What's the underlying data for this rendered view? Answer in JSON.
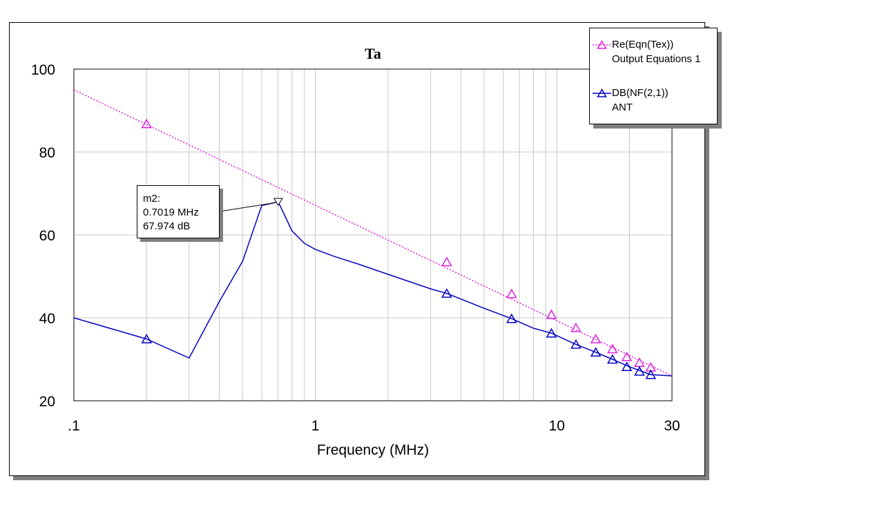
{
  "chart_data": {
    "type": "line",
    "title": "Ta",
    "xlabel": "Frequency (MHz)",
    "ylabel": "",
    "x_scale": "log",
    "xlim": [
      0.1,
      30
    ],
    "ylim": [
      20,
      100
    ],
    "x_tick_labels": [
      ".1",
      "1",
      "10",
      "30"
    ],
    "x_ticks": [
      0.1,
      1,
      10,
      30
    ],
    "y_ticks": [
      20,
      40,
      60,
      80,
      100
    ],
    "y_tick_labels": [
      "20",
      "40",
      "60",
      "80",
      "100"
    ],
    "grid": true,
    "legend_position": "top-right",
    "series": [
      {
        "name": "Re(Eqn(Tex))",
        "source": "Output Equations 1",
        "color": "#e020e0",
        "line_style": "dotted",
        "marker": "triangle",
        "x": [
          0.1,
          30
        ],
        "y": [
          95,
          26
        ],
        "marker_points": [
          [
            0.2,
            86.8
          ],
          [
            3.5,
            53.5
          ],
          [
            6.5,
            45.8
          ],
          [
            9.5,
            40.8
          ],
          [
            12,
            37.6
          ],
          [
            14.5,
            34.9
          ],
          [
            17,
            32.5
          ],
          [
            19.5,
            30.6
          ],
          [
            22,
            29.2
          ],
          [
            24.5,
            28.1
          ]
        ]
      },
      {
        "name": "DB(NF(2,1))",
        "source": "ANT",
        "color": "#0000c0",
        "line_style": "solid",
        "marker": "triangle",
        "x": [
          0.1,
          0.2,
          0.3,
          0.4,
          0.5,
          0.6,
          0.7019,
          0.8,
          0.9,
          1.0,
          1.2,
          1.5,
          2,
          3,
          3.5,
          5,
          6.5,
          8,
          9.5,
          12,
          14.5,
          17,
          20,
          24.5,
          30
        ],
        "y": [
          40,
          34.9,
          30.3,
          43.9,
          53.7,
          67.1,
          67.974,
          61,
          58,
          56.5,
          54.8,
          53,
          50.5,
          47,
          45.9,
          42.3,
          39.8,
          37.5,
          36.3,
          33.6,
          31.7,
          30,
          28.2,
          26.3,
          26
        ],
        "marker_points": [
          [
            0.2,
            34.9
          ],
          [
            3.5,
            45.9
          ],
          [
            6.5,
            39.8
          ],
          [
            9.5,
            36.3
          ],
          [
            12,
            33.6
          ],
          [
            14.5,
            31.7
          ],
          [
            17,
            30
          ],
          [
            19.5,
            28.2
          ],
          [
            22,
            27.1
          ],
          [
            24.5,
            26.3
          ]
        ]
      }
    ],
    "annotations": [
      {
        "label": "m2:",
        "x_text": "0.7019 MHz",
        "y_text": "67.974 dB",
        "x": 0.7019,
        "y": 67.974
      }
    ]
  }
}
